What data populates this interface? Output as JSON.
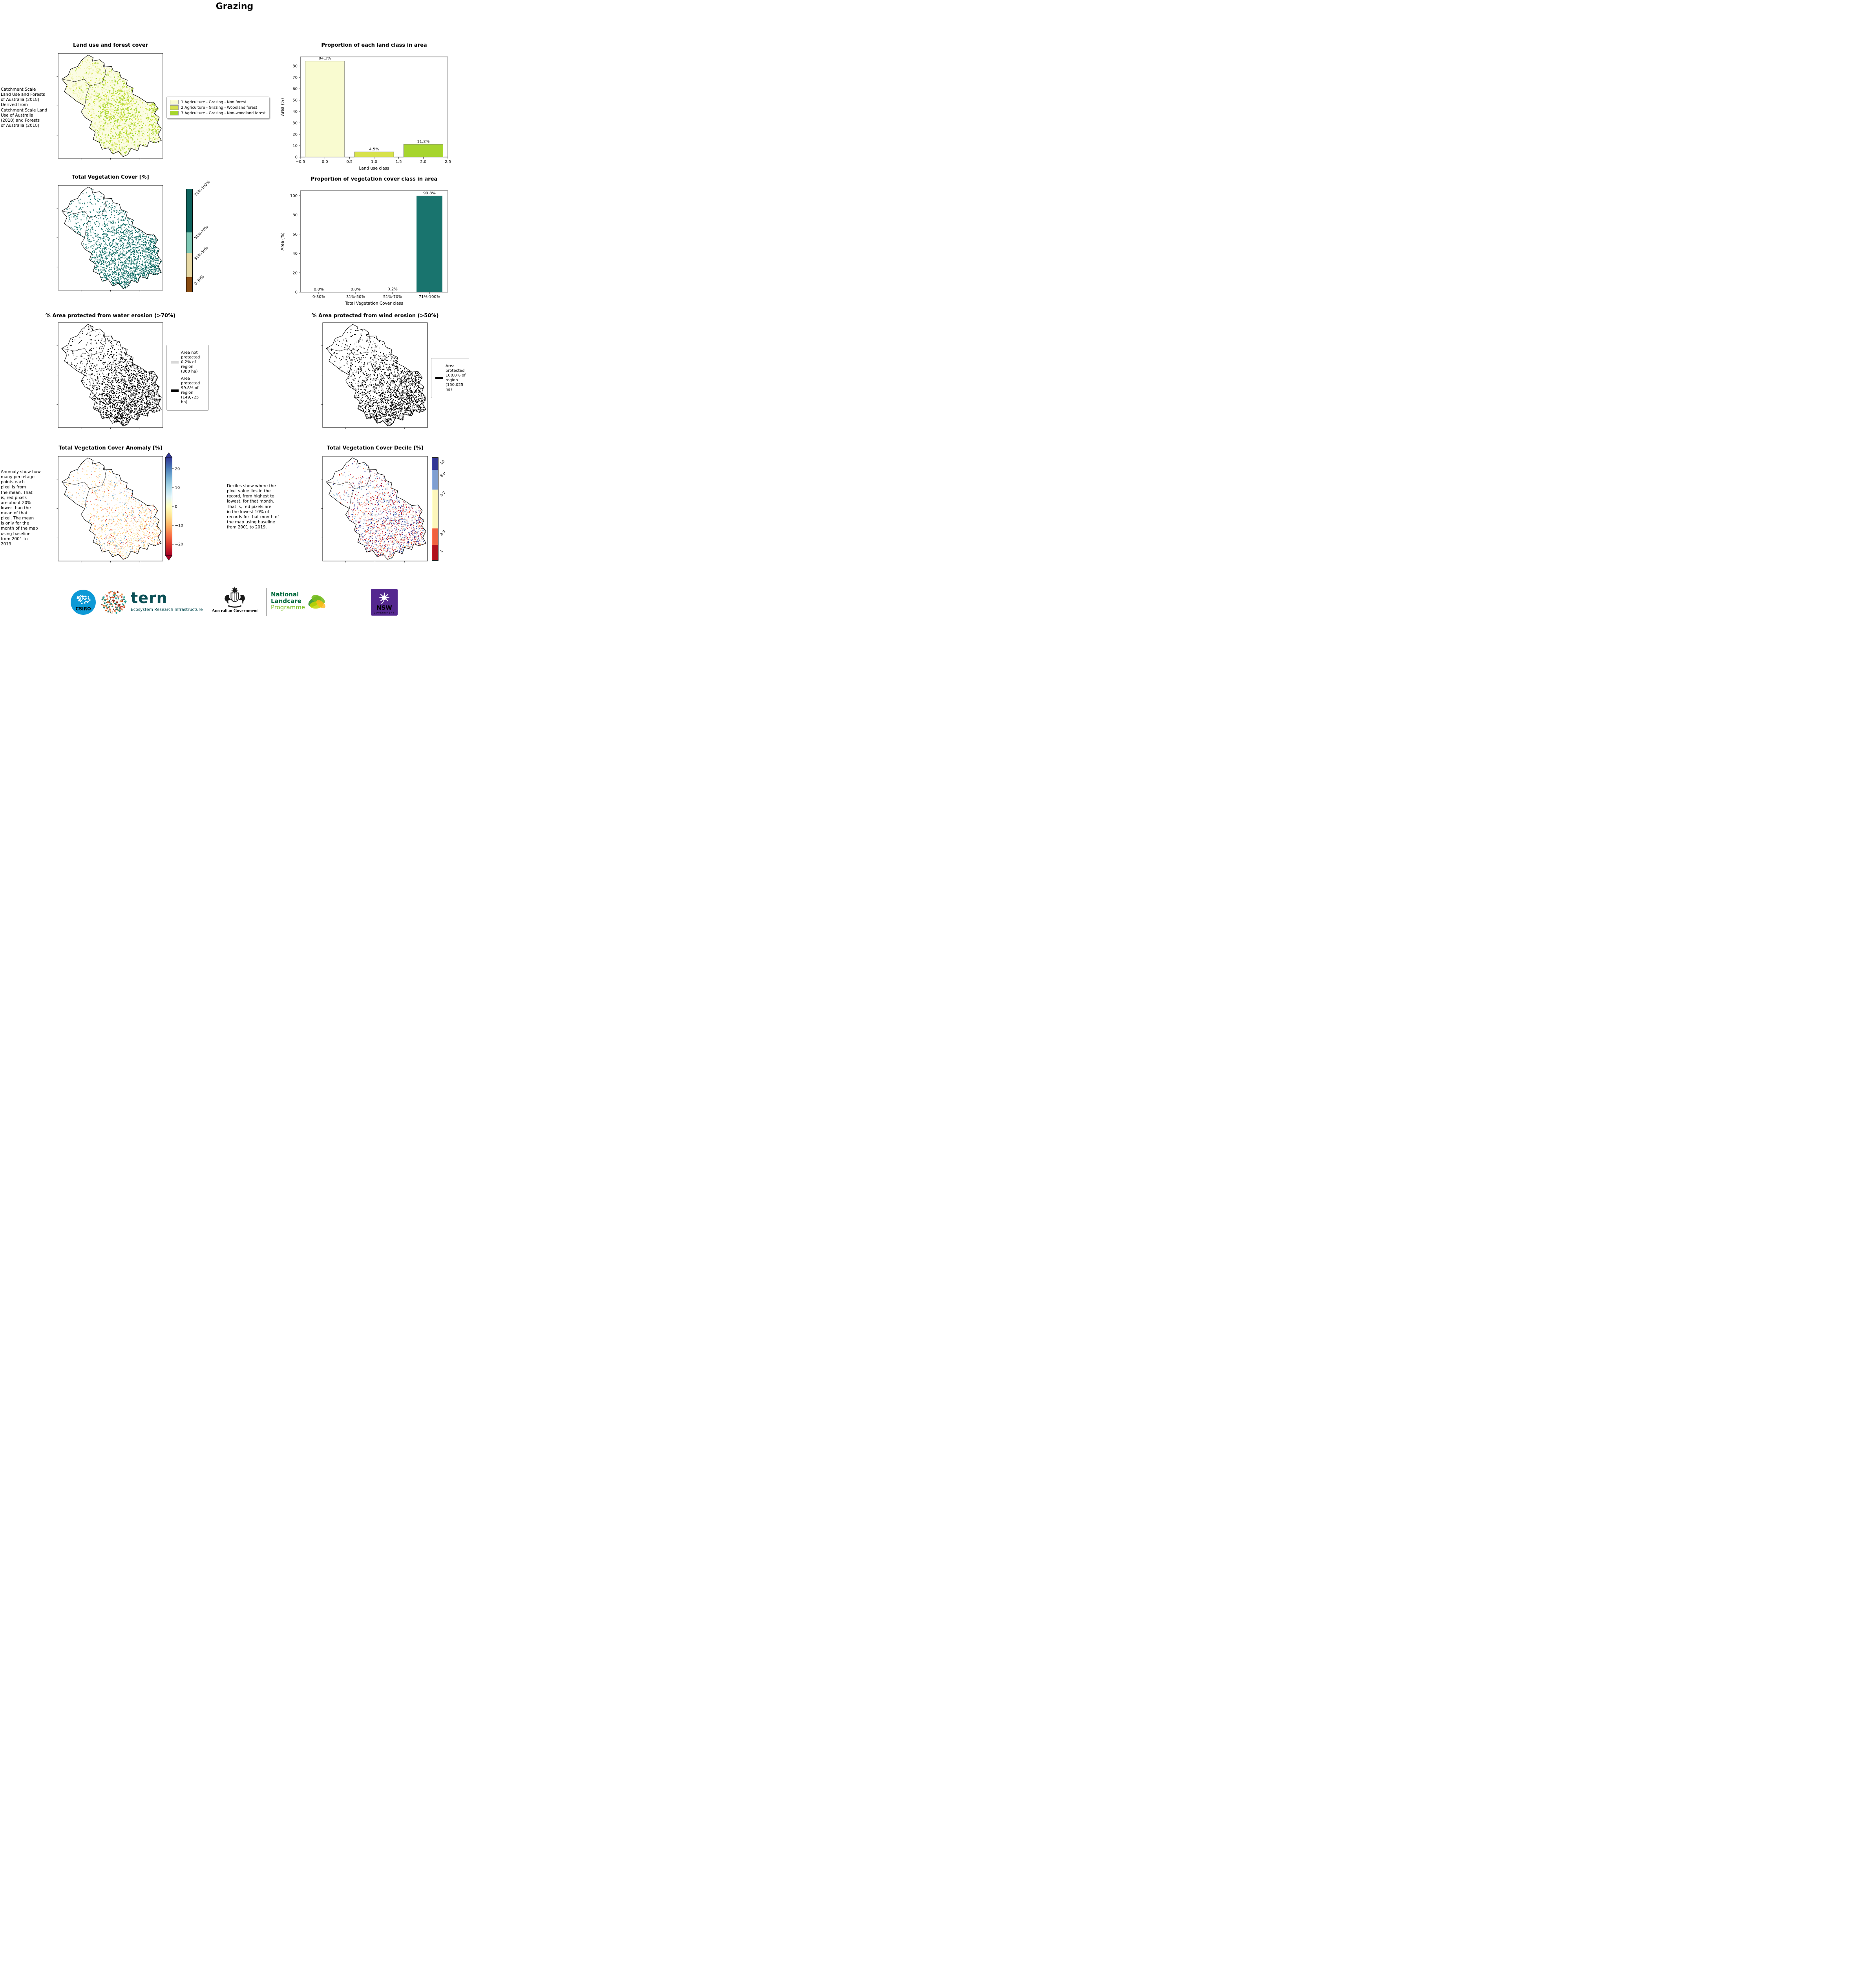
{
  "page_title": "Grazing",
  "colors": {
    "land_class_1": "#f9fbd0",
    "land_class_2": "#d7e24b",
    "land_class_3": "#a6d52e",
    "veg_dark_teal": "#17706a",
    "veg_light_teal": "#7ec9b5",
    "veg_tan": "#e7d9a4",
    "veg_brown": "#8a4b10",
    "protected_black": "#000000",
    "not_protected_gray": "#d9d9d9"
  },
  "panels": {
    "land_use": {
      "title": "Land use and forest cover",
      "note": " Catchment Scale\nLand Use and Forests\nof Australia (2018)\nDerived from\nCatchment Scale Land\nUse of Australia\n(2018) and Forests\nof Australia (2018)",
      "legend": [
        {
          "label": "1 Agriculture - Grazing - Non forest",
          "color": "#f9fbd0"
        },
        {
          "label": "2 Agriculture - Grazing - Woodland forest",
          "color": "#d7e24b"
        },
        {
          "label": "3 Agriculture - Grazing - Non-woodland forest",
          "color": "#a6d52e"
        }
      ]
    },
    "veg_cover": {
      "title": "Total Vegetation Cover [%]",
      "colorbar": [
        {
          "label": "71%-100%",
          "color": "#0d635d",
          "frac": 0.42
        },
        {
          "label": "51%-70%",
          "color": "#7ec9b5",
          "frac": 0.2
        },
        {
          "label": "31%-50%",
          "color": "#e7d9a4",
          "frac": 0.24
        },
        {
          "label": "0-30%",
          "color": "#8a4b10",
          "frac": 0.14
        }
      ]
    },
    "water_erosion": {
      "title": "% Area protected from water erosion (>70%)",
      "legend": [
        {
          "label": "Area not\nprotected\n0.2% of\nregion\n(300 ha)",
          "color": "#d9d9d9"
        },
        {
          "label": "Area\nprotected\n99.8% of\nregion\n(149,725\nha)",
          "color": "#000000"
        }
      ]
    },
    "wind_erosion": {
      "title": "% Area protected from wind erosion (>50%)",
      "legend": [
        {
          "label": "Area\nprotected\n100.0% of\nregion\n(150,025\nha)",
          "color": "#000000"
        }
      ]
    },
    "anomaly": {
      "title": "Total Vegetation Cover Anomaly [%]",
      "note": "Anomaly show how\nmany percetage\npoints each\npixel is from\nthe mean. That\nis, red pixels\nare about 20%\nlower than the\nmean of that\npixel. The mean\nis only for the\nmonth of the map\nusing baseline\nfrom 2001 to\n2019.",
      "colorbar_ticks": [
        20,
        10,
        0,
        -10,
        -20
      ]
    },
    "decile": {
      "title": "Total Vegetation Cover Decile [%]",
      "note": "Deciles show where the\npixel value lies in the\nrecord, from highest to\nlowest, for that month.\nThat is, red pixels are\nin the lowest 10% of\nrecords for that month of\nthe map using baseline\nfrom 2001 to 2019.",
      "colorbar": [
        {
          "label": "10",
          "color": "#313695",
          "frac": 0.12
        },
        {
          "label": "8-9",
          "color": "#7f9fd1",
          "frac": 0.19
        },
        {
          "label": "4-7",
          "color": "#fdf6bb",
          "frac": 0.38
        },
        {
          "label": "2-3",
          "color": "#f0613f",
          "frac": 0.16
        },
        {
          "label": "1",
          "color": "#b0111b",
          "frac": 0.15
        }
      ]
    }
  },
  "chart_data": [
    {
      "id": "land_class_proportion",
      "type": "bar",
      "title": "Proportion of each land class in area",
      "xlabel": "Land use class",
      "ylabel": "Area (%)",
      "x": [
        0,
        1,
        2
      ],
      "values": [
        84.3,
        4.5,
        11.2
      ],
      "bar_labels": [
        "84.3%",
        "4.5%",
        "11.2%"
      ],
      "bar_colors": [
        "#f9fbd0",
        "#d7e24b",
        "#a6d52e"
      ],
      "xlim": [
        -0.5,
        2.5
      ],
      "xticks": [
        -0.5,
        0.0,
        0.5,
        1.0,
        1.5,
        2.0,
        2.5
      ],
      "yticks": [
        0,
        10,
        20,
        30,
        40,
        50,
        60,
        70,
        80
      ],
      "ylim": [
        0,
        88
      ],
      "legend_position": "none",
      "grid": false
    },
    {
      "id": "veg_cover_class_proportion",
      "type": "bar",
      "title": "Proportion of vegetation cover class in area",
      "xlabel": "Total Vegetation Cover class",
      "ylabel": "Area (%)",
      "categories": [
        "0-30%",
        "31%-50%",
        "51%-70%",
        "71%-100%"
      ],
      "values": [
        0.0,
        0.0,
        0.2,
        99.8
      ],
      "bar_labels": [
        "0.0%",
        "0.0%",
        "0.2%",
        "99.8%"
      ],
      "bar_color": "#19746e",
      "yticks": [
        0,
        20,
        40,
        60,
        80,
        100
      ],
      "ylim": [
        0,
        105
      ],
      "legend_position": "none",
      "grid": false
    }
  ],
  "logos": {
    "csiro": "CSIRO",
    "tern": "tern",
    "tern_sub": "Ecosystem Research Infrastructure",
    "aus_gov": "Australian Government",
    "landcare_1": "National",
    "landcare_2": "Landcare",
    "landcare_3": "Programme",
    "nsw": "NSW",
    "nsw_sub": "GOVERNMENT"
  }
}
